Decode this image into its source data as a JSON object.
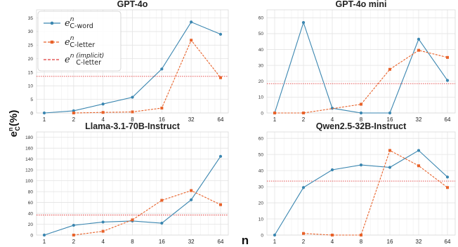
{
  "figure": {
    "ylabel": "e_C^n(%)",
    "xlabel": "n",
    "colors": {
      "word": "#3a86b0",
      "letter": "#e8622a",
      "implicit": "#e03a3a",
      "grid": "#e3e3e3"
    }
  },
  "legend": {
    "entries": [
      {
        "base": "e",
        "sup": "n",
        "sub": "C-word",
        "style": "solid-circle"
      },
      {
        "base": "e",
        "sup": "n",
        "sub": "C-letter",
        "style": "dashed-square"
      },
      {
        "base": "e",
        "sup": "n (implicit)",
        "sub": "C-letter",
        "style": "dotted-line"
      }
    ]
  },
  "chart_data": [
    {
      "type": "line",
      "title": "GPT-4o",
      "x": [
        1,
        2,
        4,
        8,
        16,
        32,
        64
      ],
      "xticks": [
        "1",
        "2",
        "4",
        "8",
        "16",
        "32",
        "64"
      ],
      "xscale": "log2",
      "ylim": [
        0,
        38
      ],
      "yticks": [
        0,
        5,
        10,
        15,
        20,
        25,
        30,
        35
      ],
      "series": [
        {
          "name": "e_C-word^n",
          "values": [
            0,
            0.8,
            3.3,
            5.8,
            16.2,
            33.5,
            29.0
          ]
        },
        {
          "name": "e_C-letter^n",
          "values": [
            null,
            0,
            0.2,
            0.4,
            1.8,
            26.8,
            13.0
          ]
        }
      ],
      "implicit": 13.5
    },
    {
      "type": "line",
      "title": "GPT-4o mini",
      "x": [
        1,
        2,
        4,
        8,
        16,
        32,
        64
      ],
      "xticks": [
        "1",
        "2",
        "4",
        "8",
        "16",
        "32",
        "64"
      ],
      "xscale": "log2",
      "ylim": [
        0,
        65
      ],
      "yticks": [
        0,
        10,
        20,
        30,
        40,
        50,
        60
      ],
      "series": [
        {
          "name": "e_C-word^n",
          "values": [
            0,
            57,
            3,
            0,
            0,
            46.5,
            20.5
          ]
        },
        {
          "name": "e_C-letter^n",
          "values": [
            0,
            0,
            null,
            5.5,
            27.5,
            39.5,
            35
          ]
        }
      ],
      "implicit": 18.5
    },
    {
      "type": "line",
      "title": "Llama-3.1-70B-Instruct",
      "x": [
        1,
        2,
        4,
        8,
        16,
        32,
        64
      ],
      "xticks": [
        "1",
        "2",
        "4",
        "8",
        "16",
        "32",
        "64"
      ],
      "xscale": "log2",
      "ylim": [
        0,
        190
      ],
      "yticks": [
        0,
        20,
        40,
        60,
        80,
        100,
        120,
        140,
        160,
        180
      ],
      "series": [
        {
          "name": "e_C-word^n",
          "values": [
            0,
            18,
            24,
            26,
            22,
            65,
            145
          ]
        },
        {
          "name": "e_C-letter^n",
          "values": [
            null,
            0,
            7,
            28,
            64,
            82,
            56
          ]
        }
      ],
      "implicit": 37
    },
    {
      "type": "line",
      "title": "Qwen2.5-32B-Instruct",
      "x": [
        1,
        2,
        4,
        8,
        16,
        32,
        64
      ],
      "xticks": [
        "1",
        "2",
        "4",
        "8",
        "16",
        "32",
        "64"
      ],
      "xscale": "log2",
      "ylim": [
        0,
        64
      ],
      "yticks": [
        0,
        10,
        20,
        30,
        40,
        50,
        60
      ],
      "series": [
        {
          "name": "e_C-word^n",
          "values": [
            0,
            29.5,
            40.5,
            43.5,
            42,
            52.5,
            36
          ]
        },
        {
          "name": "e_C-letter^n",
          "values": [
            null,
            1,
            0,
            0,
            52.5,
            43,
            29.5
          ]
        }
      ],
      "implicit": 33.5
    }
  ]
}
